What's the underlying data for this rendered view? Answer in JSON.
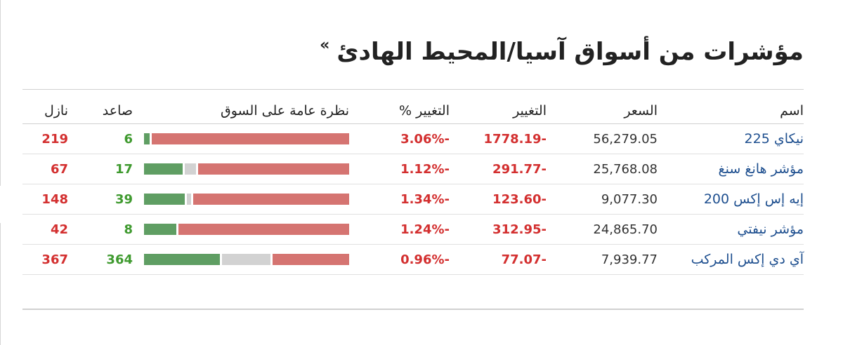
{
  "title": "مؤشرات من أسواق آسيا/المحيط الهادئ",
  "title_chevron": "»",
  "headers": {
    "name": "اسم",
    "price": "السعر",
    "change": "التغيير",
    "change_pct": "التغيير %",
    "outlook": "نظرة عامة على السوق",
    "up": "صاعد",
    "down": "نازل"
  },
  "rows": [
    {
      "name": "نيكاي 225",
      "price": "56,279.05",
      "change": "-1778.19",
      "change_pct": "-3.06%",
      "up": "6",
      "down": "219",
      "unchanged": "0"
    },
    {
      "name": "مؤشر هانغ سنغ",
      "price": "25,768.08",
      "change": "-291.77",
      "change_pct": "-1.12%",
      "up": "17",
      "down": "67",
      "unchanged": "5"
    },
    {
      "name": "إيه إس إكس 200",
      "price": "9,077.30",
      "change": "-123.60",
      "change_pct": "-1.34%",
      "up": "39",
      "down": "148",
      "unchanged": "4"
    },
    {
      "name": "مؤشر نيفتي",
      "price": "24,865.70",
      "change": "-312.95",
      "change_pct": "-1.24%",
      "up": "8",
      "down": "42",
      "unchanged": "0"
    },
    {
      "name": "آي دي إكس المركب",
      "price": "7,939.77",
      "change": "-77.07",
      "change_pct": "-0.96%",
      "up": "364",
      "down": "367",
      "unchanged": "230"
    }
  ],
  "colors": {
    "up": "#5f9e63",
    "unchanged": "#d2d2d2",
    "down": "#d57471",
    "negative_text": "#d32f2f",
    "positive_text": "#3f9a2f",
    "link": "#1e4f8f"
  }
}
